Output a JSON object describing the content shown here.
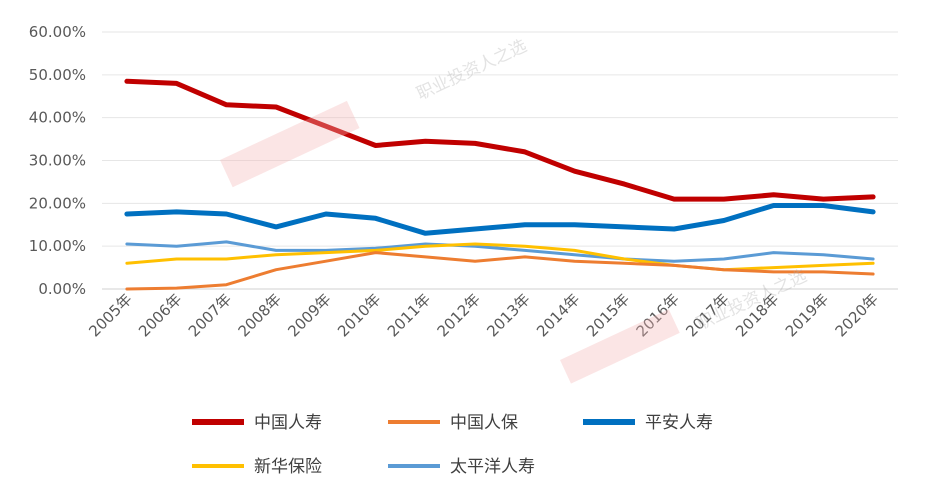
{
  "chart_data": {
    "type": "line",
    "categories": [
      "2005年",
      "2006年",
      "2007年",
      "2008年",
      "2009年",
      "2010年",
      "2011年",
      "2012年",
      "2013年",
      "2014年",
      "2015年",
      "2016年",
      "2017年",
      "2018年",
      "2019年",
      "2020年"
    ],
    "y_ticks": [
      "0.00%",
      "10.00%",
      "20.00%",
      "30.00%",
      "40.00%",
      "50.00%",
      "60.00%"
    ],
    "ylim": [
      0,
      60
    ],
    "grid": true,
    "legend_position": "bottom",
    "series": [
      {
        "name": "中国人寿",
        "color": "#C00000",
        "values": [
          48.5,
          48.0,
          43.0,
          42.5,
          38.0,
          33.5,
          34.5,
          34.0,
          32.0,
          27.5,
          24.5,
          21.0,
          21.0,
          22.0,
          21.0,
          21.5
        ]
      },
      {
        "name": "中国人保",
        "color": "#ED7D31",
        "values": [
          0.0,
          0.2,
          1.0,
          4.5,
          6.5,
          8.5,
          7.5,
          6.5,
          7.5,
          6.5,
          6.0,
          5.5,
          4.5,
          4.0,
          4.0,
          3.5
        ]
      },
      {
        "name": "平安人寿",
        "color": "#0070C0",
        "values": [
          17.5,
          18.0,
          17.5,
          14.5,
          17.5,
          16.5,
          13.0,
          14.0,
          15.0,
          15.0,
          14.5,
          14.0,
          16.0,
          19.5,
          19.5,
          18.0
        ]
      },
      {
        "name": "新华保险",
        "color": "#FFC000",
        "values": [
          6.0,
          7.0,
          7.0,
          8.0,
          8.5,
          9.0,
          10.0,
          10.5,
          10.0,
          9.0,
          7.0,
          5.5,
          4.5,
          5.0,
          5.5,
          6.0
        ]
      },
      {
        "name": "太平洋人寿",
        "color": "#5B9BD5",
        "values": [
          10.5,
          10.0,
          11.0,
          9.0,
          9.0,
          9.5,
          10.5,
          10.0,
          9.0,
          8.0,
          7.0,
          6.5,
          7.0,
          8.5,
          8.0,
          7.0
        ]
      }
    ]
  },
  "watermarks": {
    "account_text": "职业投资人之选"
  }
}
